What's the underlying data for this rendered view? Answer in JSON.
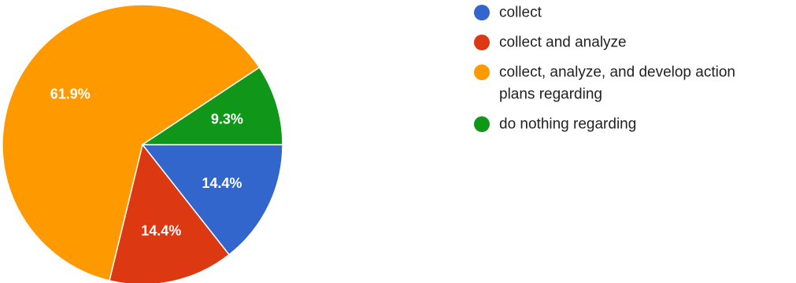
{
  "chart_data": {
    "type": "pie",
    "categories": [
      "collect",
      "collect and analyze",
      "collect, analyze, and develop action plans regarding",
      "do nothing regarding"
    ],
    "values": [
      14.4,
      14.4,
      61.9,
      9.3
    ],
    "labels": [
      "14.4%",
      "14.4%",
      "61.9%",
      "9.3%"
    ],
    "colors": [
      "#3366cc",
      "#dc3912",
      "#ff9900",
      "#109618"
    ],
    "legend": {
      "placement": "right",
      "entries": [
        [
          "collect"
        ],
        [
          "collect and analyze"
        ],
        [
          "collect, analyze, and develop action",
          "plans regarding"
        ],
        [
          "do nothing regarding"
        ]
      ]
    },
    "start_direction": "3 o'clock",
    "order": "clockwise"
  }
}
